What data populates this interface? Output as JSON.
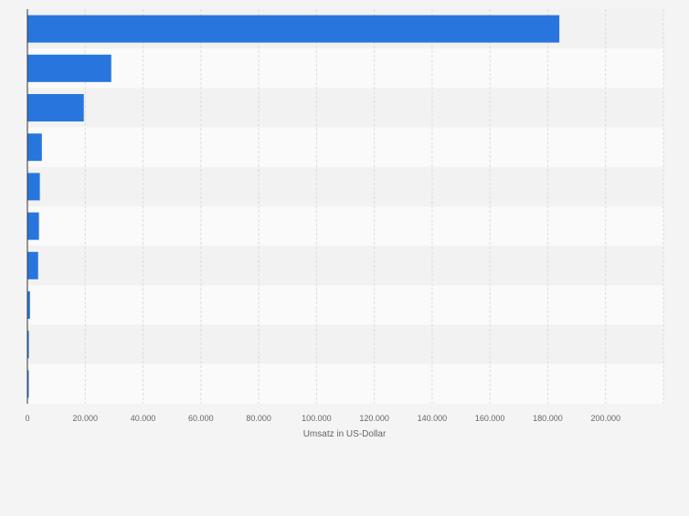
{
  "chart_data": {
    "type": "bar",
    "orientation": "horizontal",
    "categories": [
      "",
      "",
      "",
      "",
      "",
      "",
      "",
      "",
      "",
      ""
    ],
    "values": [
      184000,
      29000,
      19500,
      5000,
      4300,
      4000,
      3700,
      900,
      500,
      400
    ],
    "title": "",
    "xlabel": "Umsatz in US-Dollar",
    "ylabel": "",
    "xlim": [
      0,
      220000
    ],
    "x_ticks": [
      0,
      20000,
      40000,
      60000,
      80000,
      100000,
      120000,
      140000,
      160000,
      180000,
      200000
    ],
    "x_tick_labels": [
      "0",
      "20.000",
      "40.000",
      "60.000",
      "80.000",
      "100.000",
      "120.000",
      "140.000",
      "160.000",
      "180.000",
      "200.000"
    ],
    "grid": true,
    "legend": "none",
    "colors": {
      "bar": "#2876dd",
      "band_light": "#fafafa",
      "band_dark": "#f2f2f2",
      "grid": "#dcdcdc",
      "axis": "#333333",
      "tick_text": "#666666",
      "background": "#f4f4f4"
    }
  }
}
